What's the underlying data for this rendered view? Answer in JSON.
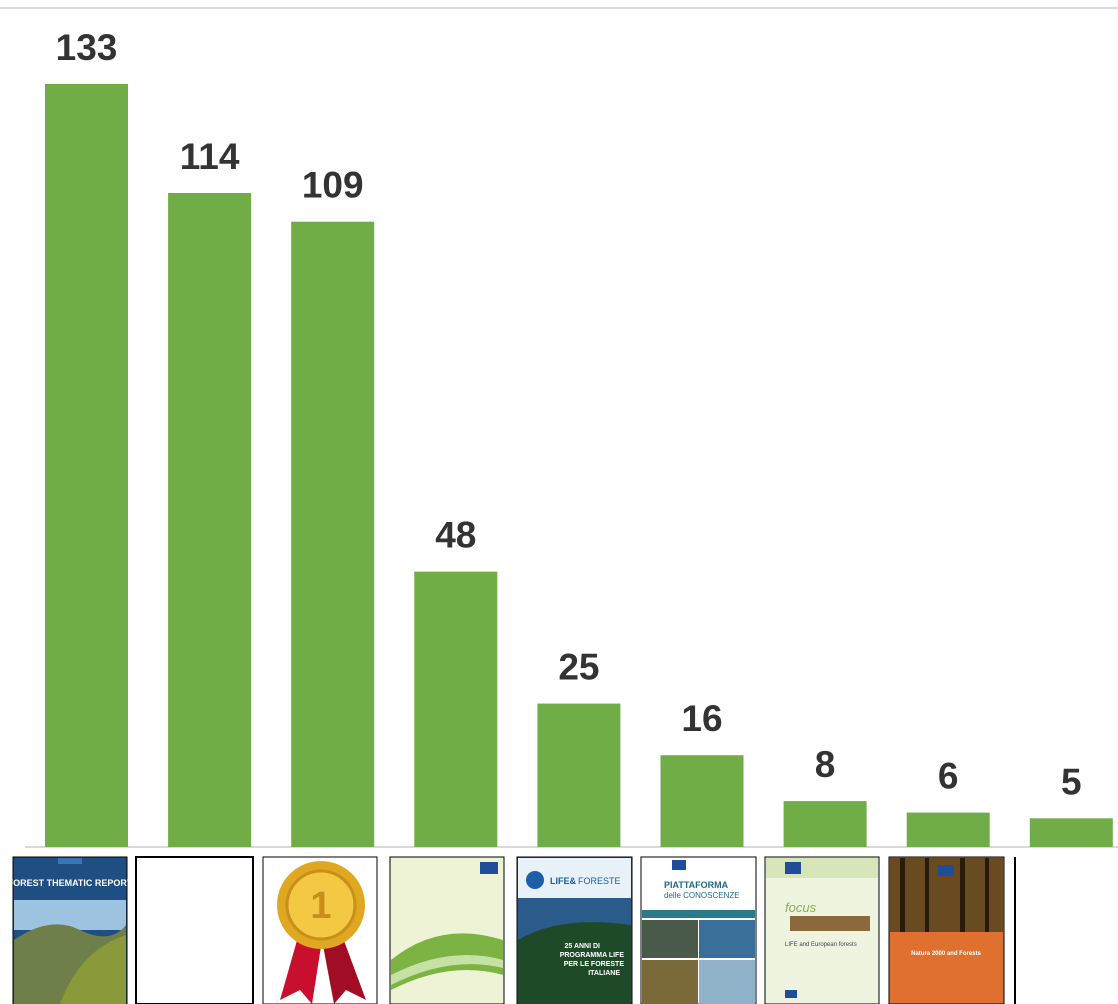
{
  "chart_data": {
    "type": "bar",
    "categories": [
      null,
      null,
      null,
      null,
      null,
      null,
      null,
      null,
      null
    ],
    "values": [
      133,
      114,
      109,
      48,
      25,
      16,
      8,
      6,
      5
    ],
    "color": "#70ad47"
  },
  "covers": {
    "forest_report": "FOREST THEMATIC REPORT",
    "medal": "1",
    "life_logo": "LIFE&",
    "life_logo_2": "FORESTE",
    "life_lines": [
      "25 ANNI DI",
      "PROGRAMMA LIFE",
      "PER LE FORESTE",
      "ITALIANE"
    ],
    "platform": "PIATTAFORMA",
    "platform_2": "delle CONOSCENZE",
    "focus": "focus",
    "focus_title": "LIFE and European forests",
    "natura": "Natura 2000 and Forests"
  }
}
